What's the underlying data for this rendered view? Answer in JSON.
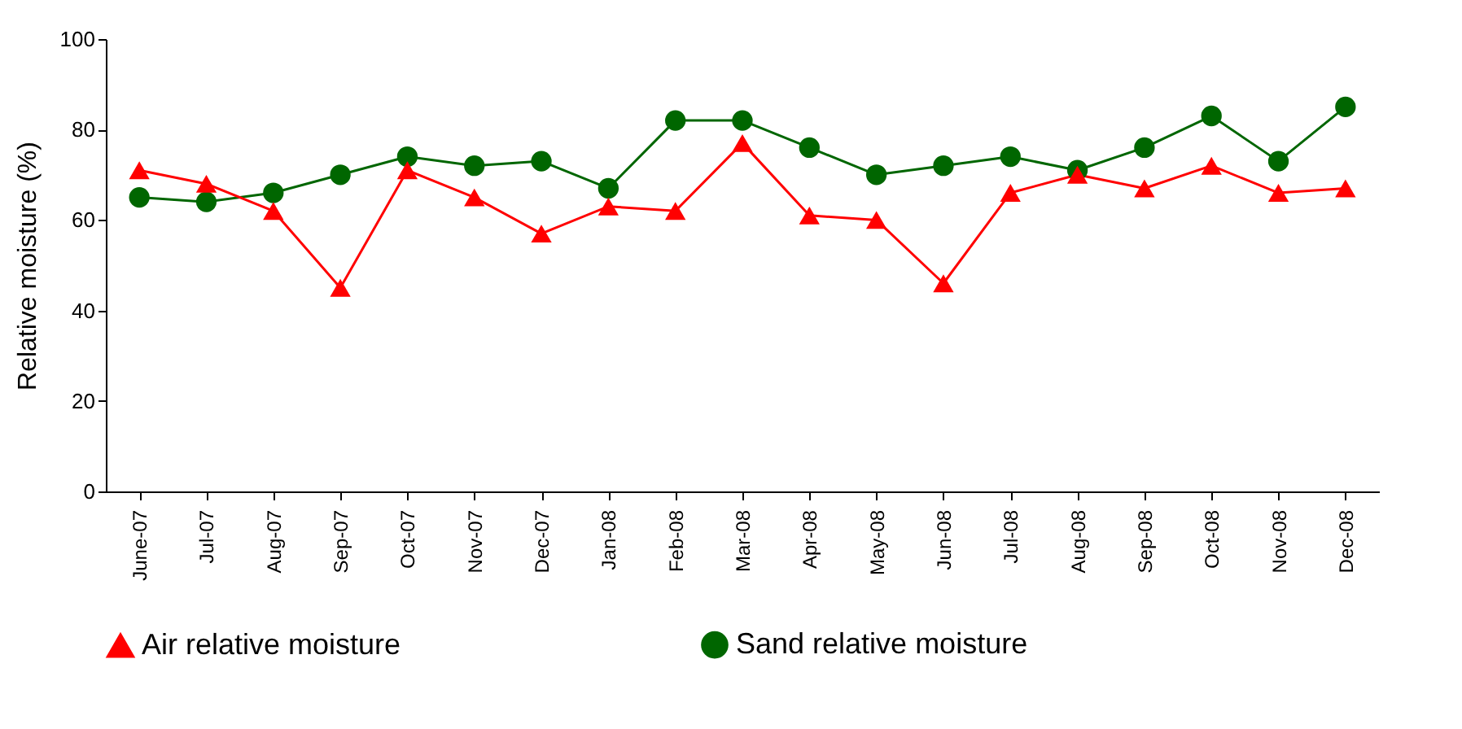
{
  "chart_data": {
    "type": "line",
    "ylabel": "Relative moisture (%)",
    "categories": [
      "June-07",
      "Jul-07",
      "Aug-07",
      "Sep-07",
      "Oct-07",
      "Nov-07",
      "Dec-07",
      "Jan-08",
      "Feb-08",
      "Mar-08",
      "Apr-08",
      "May-08",
      "Jun-08",
      "Jul-08",
      "Aug-08",
      "Sep-08",
      "Oct-08",
      "Nov-08",
      "Dec-08"
    ],
    "series": [
      {
        "name": "Air relative moisture",
        "color": "#ff0000",
        "marker": "triangle",
        "values": [
          71,
          68,
          62,
          45,
          71,
          65,
          57,
          63,
          62,
          77,
          61,
          60,
          46,
          66,
          70,
          67,
          72,
          66,
          67
        ]
      },
      {
        "name": "Sand relative moisture",
        "color": "#006600",
        "marker": "circle",
        "values": [
          65,
          64,
          66,
          70,
          74,
          72,
          73,
          67,
          82,
          82,
          76,
          70,
          72,
          74,
          71,
          76,
          83,
          73,
          85
        ]
      }
    ],
    "ylim": [
      0,
      100
    ],
    "yticks": [
      0,
      20,
      40,
      60,
      80,
      100
    ],
    "grid": false,
    "legend": "bottom"
  }
}
